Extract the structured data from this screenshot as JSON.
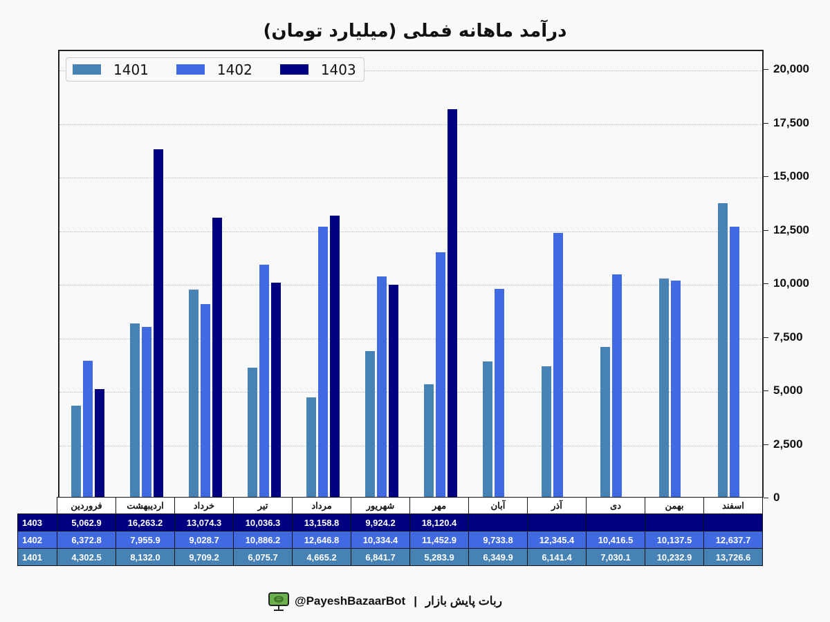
{
  "title": "درآمد ماهانه فملی (میلیارد تومان)",
  "legend": [
    {
      "label": "1401",
      "color": "#4682b4"
    },
    {
      "label": "1402",
      "color": "#4169e1"
    },
    {
      "label": "1403",
      "color": "#000080"
    }
  ],
  "y_ticks": [
    "0",
    "2,500",
    "5,000",
    "7,500",
    "10,000",
    "12,500",
    "15,000",
    "17,500",
    "20,000"
  ],
  "table": {
    "months": [
      "فروردین",
      "اردیبهشت",
      "خرداد",
      "تیر",
      "مرداد",
      "شهریور",
      "مهر",
      "آبان",
      "آذر",
      "دی",
      "بهمن",
      "اسفند"
    ],
    "rows": [
      {
        "label": "1403",
        "cells": [
          "5,062.9",
          "16,263.2",
          "13,074.3",
          "10,036.3",
          "13,158.8",
          "9,924.2",
          "18,120.4",
          "",
          "",
          "",
          "",
          ""
        ]
      },
      {
        "label": "1402",
        "cells": [
          "6,372.8",
          "7,955.9",
          "9,028.7",
          "10,886.2",
          "12,646.8",
          "10,334.4",
          "11,452.9",
          "9,733.8",
          "12,345.4",
          "10,416.5",
          "10,137.5",
          "12,637.7"
        ]
      },
      {
        "label": "1401",
        "cells": [
          "4,302.5",
          "8,132.0",
          "9,709.2",
          "6,075.7",
          "4,665.2",
          "6,841.7",
          "5,283.9",
          "6,349.9",
          "6,141.4",
          "7,030.1",
          "10,232.9",
          "13,726.6"
        ]
      }
    ]
  },
  "footer": {
    "handle": "@PayeshBazaarBot",
    "separator": "|",
    "name": "ربات پایش بازار",
    "icon": "monitor-icon"
  },
  "chart_data": {
    "type": "bar",
    "title": "درآمد ماهانه فملی (میلیارد تومان)",
    "xlabel": "",
    "ylabel": "",
    "ylim": [
      0,
      20900
    ],
    "y_axis_position": "right",
    "grid": true,
    "legend_position": "upper left",
    "categories": [
      "فروردین",
      "اردیبهشت",
      "خرداد",
      "تیر",
      "مرداد",
      "شهریور",
      "مهر",
      "آبان",
      "آذر",
      "دی",
      "بهمن",
      "اسفند"
    ],
    "series": [
      {
        "name": "1401",
        "color": "#4682b4",
        "values": [
          4302.5,
          8132.0,
          9709.2,
          6075.7,
          4665.2,
          6841.7,
          5283.9,
          6349.9,
          6141.4,
          7030.1,
          10232.9,
          13726.6
        ]
      },
      {
        "name": "1402",
        "color": "#4169e1",
        "values": [
          6372.8,
          7955.9,
          9028.7,
          10886.2,
          12646.8,
          10334.4,
          11452.9,
          9733.8,
          12345.4,
          10416.5,
          10137.5,
          12637.7
        ]
      },
      {
        "name": "1403",
        "color": "#000080",
        "values": [
          5062.9,
          16263.2,
          13074.3,
          10036.3,
          13158.8,
          9924.2,
          18120.4,
          null,
          null,
          null,
          null,
          null
        ]
      }
    ]
  }
}
